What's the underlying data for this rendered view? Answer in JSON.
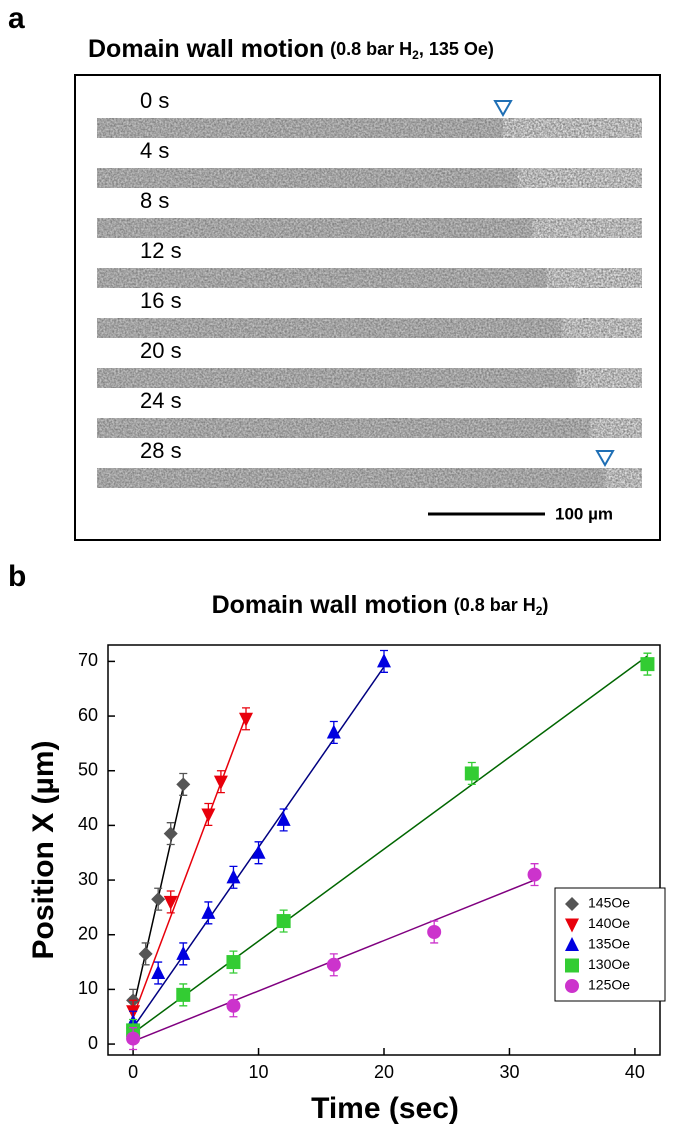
{
  "panel_a": {
    "label": "a",
    "title": "Domain wall motion",
    "subtitle": [
      "(0.8 bar H",
      "2",
      ", 135 Oe)"
    ],
    "frames": [
      "0 s",
      "4 s",
      "8 s",
      "12 s",
      "16 s",
      "20 s",
      "24 s",
      "28 s"
    ],
    "scale_bar": "100 µm"
  },
  "chart_data": {
    "type": "scatter",
    "label": "b",
    "title": "Domain wall motion",
    "subtitle": [
      "(0.8 bar H",
      "2",
      ")"
    ],
    "x_label": "Time (sec)",
    "y_label": "Position X (µm)",
    "xlim": [
      -2,
      42
    ],
    "ylim": [
      -2,
      73
    ],
    "xticks": [
      0,
      10,
      20,
      30,
      40
    ],
    "yticks": [
      0,
      10,
      20,
      30,
      40,
      50,
      60,
      70
    ],
    "legend": "bottom-right",
    "series": [
      {
        "name": "145Oe",
        "color": "#555555",
        "line_color": "#000000",
        "marker": "diamond",
        "x": [
          0,
          1,
          2,
          3,
          4
        ],
        "values": [
          8,
          16.5,
          26.5,
          38.5,
          47.5
        ],
        "errors": [
          2,
          2,
          2,
          2,
          2
        ],
        "fit": {
          "x": [
            0,
            4
          ],
          "y": [
            6.5,
            47
          ]
        }
      },
      {
        "name": "140Oe",
        "color": "#e8000b",
        "line_color": "#e8000b",
        "marker": "triangle-down",
        "x": [
          0,
          3,
          6,
          7,
          9
        ],
        "values": [
          6,
          26,
          42,
          48,
          59.5
        ],
        "errors": [
          2,
          2,
          2,
          2,
          2
        ],
        "fit": {
          "x": [
            0,
            9
          ],
          "y": [
            5,
            60
          ]
        }
      },
      {
        "name": "135Oe",
        "color": "#0000e0",
        "line_color": "#000080",
        "marker": "triangle-up",
        "x": [
          0,
          2,
          4,
          6,
          8,
          10,
          12,
          16,
          20
        ],
        "values": [
          4,
          13,
          16.5,
          24,
          30.5,
          35,
          41,
          57,
          70
        ],
        "errors": [
          2,
          2,
          2,
          2,
          2,
          2,
          2,
          2,
          2
        ],
        "fit": {
          "x": [
            0,
            20
          ],
          "y": [
            3,
            69
          ]
        }
      },
      {
        "name": "130Oe",
        "color": "#33cc33",
        "line_color": "#006600",
        "marker": "square",
        "x": [
          0,
          4,
          8,
          12,
          27,
          41
        ],
        "values": [
          2.5,
          9,
          15,
          22.5,
          49.5,
          69.5
        ],
        "errors": [
          2,
          2,
          2,
          2,
          2,
          2
        ],
        "fit": {
          "x": [
            0,
            41
          ],
          "y": [
            2,
            71
          ]
        }
      },
      {
        "name": "125Oe",
        "color": "#cc33cc",
        "line_color": "#800080",
        "marker": "circle",
        "x": [
          0,
          8,
          16,
          24,
          32
        ],
        "values": [
          1,
          7,
          14.5,
          20.5,
          31
        ],
        "errors": [
          2,
          2,
          2,
          2,
          2
        ],
        "fit": {
          "x": [
            0,
            32
          ],
          "y": [
            0.5,
            30
          ]
        }
      }
    ]
  }
}
